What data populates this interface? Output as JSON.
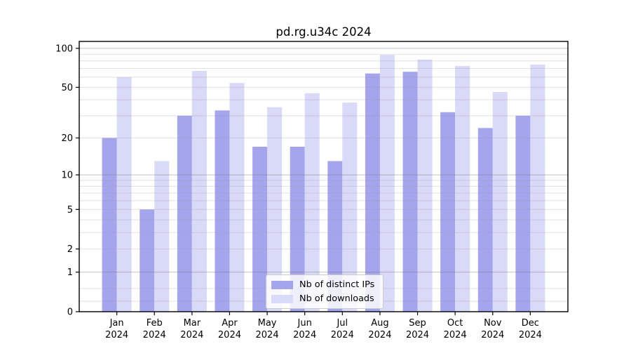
{
  "title": "pd.rg.u34c 2024",
  "chart_data": {
    "type": "bar",
    "categories": [
      "Jan",
      "Feb",
      "Mar",
      "Apr",
      "May",
      "Jun",
      "Jul",
      "Aug",
      "Sep",
      "Oct",
      "Nov",
      "Dec"
    ],
    "year": "2024",
    "series": [
      {
        "name": "Nb of distinct IPs",
        "color": "#a5a5ee",
        "values": [
          20,
          5,
          30,
          33,
          17,
          17,
          13,
          64,
          66,
          32,
          24,
          30
        ]
      },
      {
        "name": "Nb of downloads",
        "color": "#d9d9f8",
        "values": [
          60,
          13,
          67,
          54,
          35,
          45,
          38,
          89,
          82,
          73,
          46,
          75
        ]
      }
    ],
    "xlabel": "",
    "ylabel": "",
    "yscale": "log10(1+x)",
    "yticks": [
      0,
      1,
      2,
      5,
      10,
      20,
      50,
      100
    ],
    "ylim": [
      0,
      113
    ],
    "grid": "horizontal major+minor",
    "legend_position": "lower center"
  },
  "colors": {
    "major_grid": "#c4c4c4",
    "minor_grid": "#ebebeb",
    "axis": "#000000",
    "background": "#ffffff"
  }
}
